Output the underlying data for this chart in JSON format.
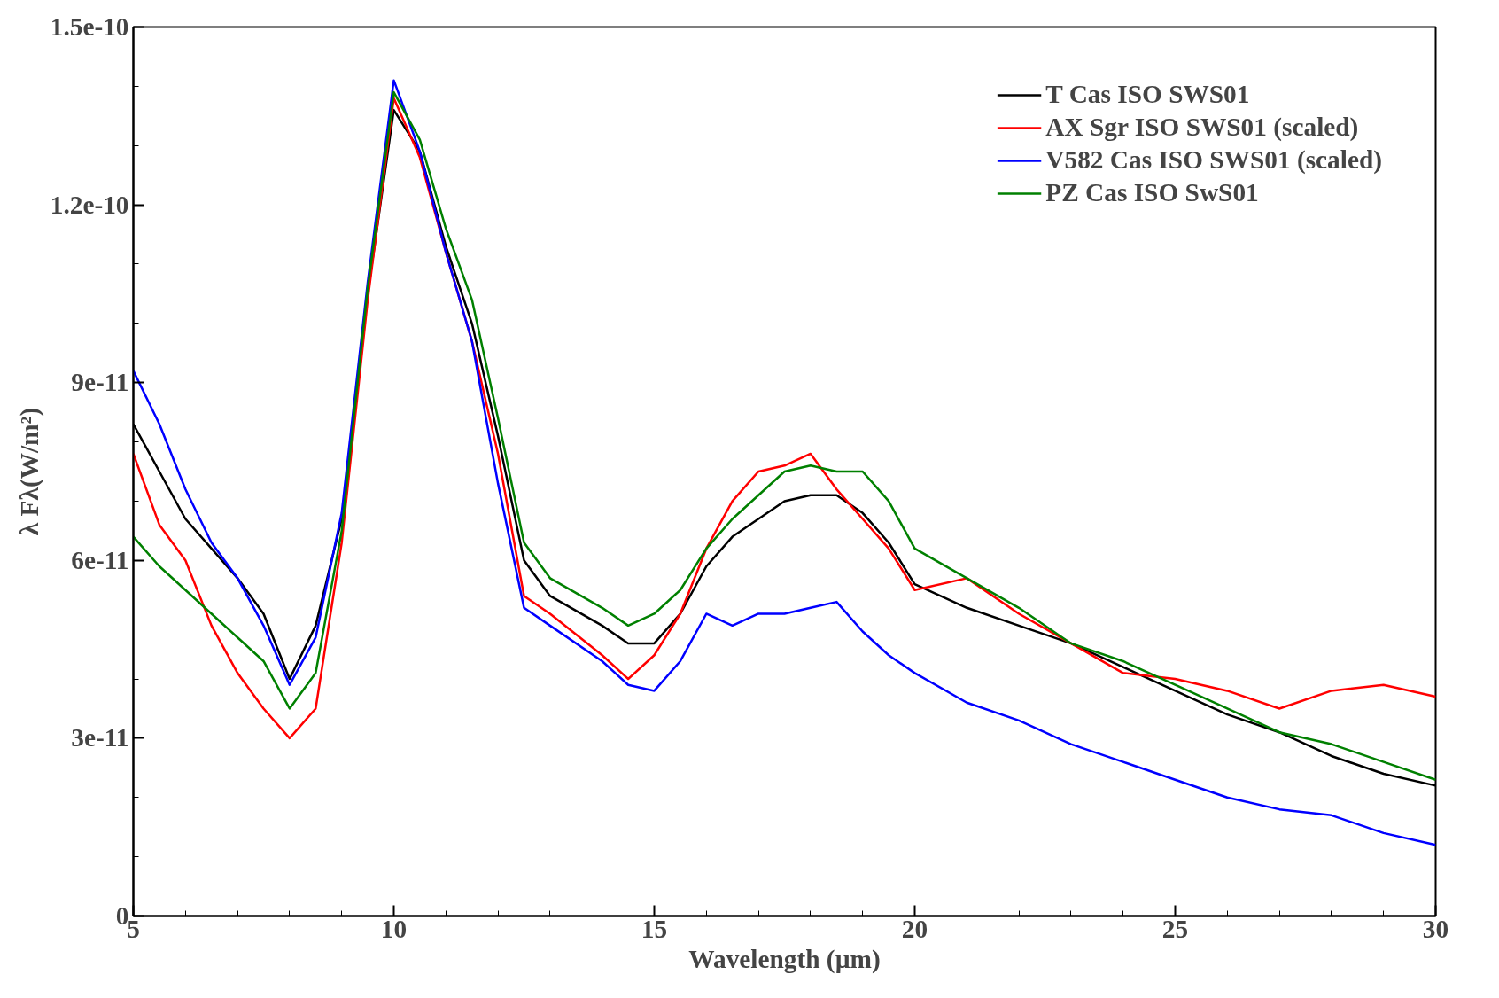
{
  "chart_data": {
    "type": "line",
    "xlabel": "Wavelength (µm)",
    "ylabel": "λ Fλ(W/m²)",
    "xlim": [
      5,
      30
    ],
    "xticks": [
      5,
      10,
      15,
      20,
      25,
      30
    ],
    "ylim": [
      0,
      1.5e-10
    ],
    "yticks": [
      0,
      {
        "value": 3e-11,
        "label": "3e-11"
      },
      {
        "value": 6e-11,
        "label": "6e-11"
      },
      {
        "value": 9e-11,
        "label": "9e-11"
      },
      {
        "value": 1.2e-10,
        "label": "1.2e-10"
      },
      {
        "value": 1.5e-10,
        "label": "1.5e-10"
      }
    ],
    "grid": false,
    "legend": "top right",
    "line_style": "solid",
    "marker": "none",
    "x": [
      5,
      5.5,
      6,
      6.5,
      7,
      7.5,
      8,
      8.5,
      9,
      9.5,
      10,
      10.5,
      11,
      11.5,
      12,
      12.5,
      13,
      14,
      14.5,
      15,
      15.5,
      16,
      16.5,
      17,
      17.5,
      18,
      18.5,
      19,
      19.5,
      20,
      21,
      22,
      23,
      24,
      25,
      26,
      27,
      28,
      29,
      30
    ],
    "series": [
      {
        "name": "T Cas ISO SWS01",
        "color": "#000000",
        "values": [
          8.3e-11,
          7.5e-11,
          6.7e-11,
          6.2e-11,
          5.7e-11,
          5.1e-11,
          4e-11,
          4.9e-11,
          6.7e-11,
          1.05e-10,
          1.36e-10,
          1.29e-10,
          1.13e-10,
          1e-10,
          8.1e-11,
          6e-11,
          5.4e-11,
          4.9e-11,
          4.6e-11,
          4.6e-11,
          5.1e-11,
          5.9e-11,
          6.4e-11,
          6.7e-11,
          7e-11,
          7.1e-11,
          7.1e-11,
          6.8e-11,
          6.3e-11,
          5.6e-11,
          5.2e-11,
          4.9e-11,
          4.6e-11,
          4.2e-11,
          3.8e-11,
          3.4e-11,
          3.1e-11,
          2.7e-11,
          2.4e-11,
          2.2e-11
        ]
      },
      {
        "name": "AX Sgr ISO SWS01 (scaled)",
        "color": "#ff0000",
        "values": [
          7.8e-11,
          6.6e-11,
          6e-11,
          4.9e-11,
          4.1e-11,
          3.5e-11,
          3e-11,
          3.5e-11,
          6.3e-11,
          1.04e-10,
          1.38e-10,
          1.28e-10,
          1.12e-10,
          9.7e-11,
          7.8e-11,
          5.4e-11,
          5.1e-11,
          4.4e-11,
          4e-11,
          4.4e-11,
          5.1e-11,
          6.2e-11,
          7e-11,
          7.5e-11,
          7.6e-11,
          7.8e-11,
          7.2e-11,
          6.7e-11,
          6.2e-11,
          5.5e-11,
          5.7e-11,
          5.1e-11,
          4.6e-11,
          4.1e-11,
          4e-11,
          3.8e-11,
          3.5e-11,
          3.8e-11,
          3.9e-11,
          3.7e-11
        ]
      },
      {
        "name": "V582 Cas ISO SWS01 (scaled)",
        "color": "#0000ff",
        "values": [
          9.2e-11,
          8.3e-11,
          7.2e-11,
          6.3e-11,
          5.7e-11,
          4.9e-11,
          3.9e-11,
          4.7e-11,
          6.8e-11,
          1.07e-10,
          1.41e-10,
          1.29e-10,
          1.12e-10,
          9.7e-11,
          7.3e-11,
          5.2e-11,
          4.9e-11,
          4.3e-11,
          3.9e-11,
          3.8e-11,
          4.3e-11,
          5.1e-11,
          4.9e-11,
          5.1e-11,
          5.1e-11,
          5.2e-11,
          5.3e-11,
          4.8e-11,
          4.4e-11,
          4.1e-11,
          3.6e-11,
          3.3e-11,
          2.9e-11,
          2.6e-11,
          2.3e-11,
          2e-11,
          1.8e-11,
          1.7e-11,
          1.4e-11,
          1.2e-11
        ]
      },
      {
        "name": "PZ Cas ISO SwS01",
        "color": "#008000",
        "values": [
          6.4e-11,
          5.9e-11,
          5.5e-11,
          5.1e-11,
          4.7e-11,
          4.3e-11,
          3.5e-11,
          4.1e-11,
          6.5e-11,
          1.06e-10,
          1.39e-10,
          1.31e-10,
          1.16e-10,
          1.04e-10,
          8.4e-11,
          6.3e-11,
          5.7e-11,
          5.2e-11,
          4.9e-11,
          5.1e-11,
          5.5e-11,
          6.2e-11,
          6.7e-11,
          7.1e-11,
          7.5e-11,
          7.6e-11,
          7.5e-11,
          7.5e-11,
          7e-11,
          6.2e-11,
          5.7e-11,
          5.2e-11,
          4.6e-11,
          4.3e-11,
          3.9e-11,
          3.5e-11,
          3.1e-11,
          2.9e-11,
          2.6e-11,
          2.3e-11
        ]
      }
    ]
  }
}
